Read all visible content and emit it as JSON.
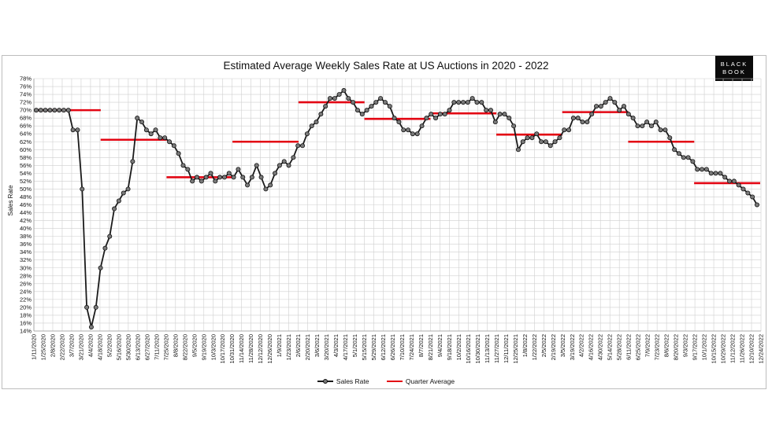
{
  "chart_data": {
    "type": "line",
    "title": "Estimated Average Weekly Sales Rate at US Auctions in 2020 - 2022",
    "ylabel": "Sales Rate",
    "xlabel": "",
    "ylim": [
      14,
      78
    ],
    "y_ticks": [
      "14%",
      "16%",
      "18%",
      "20%",
      "22%",
      "24%",
      "26%",
      "28%",
      "30%",
      "32%",
      "34%",
      "36%",
      "38%",
      "40%",
      "42%",
      "44%",
      "46%",
      "48%",
      "50%",
      "52%",
      "54%",
      "56%",
      "58%",
      "60%",
      "62%",
      "64%",
      "66%",
      "68%",
      "70%",
      "72%",
      "74%",
      "76%",
      "78%"
    ],
    "x_tick_labels": [
      "1/11/2020",
      "1/25/2020",
      "2/8/2020",
      "2/22/2020",
      "3/7/2020",
      "3/21/2020",
      "4/4/2020",
      "4/18/2020",
      "5/2/2020",
      "5/16/2020",
      "5/30/2020",
      "6/13/2020",
      "6/27/2020",
      "7/11/2020",
      "7/25/2020",
      "8/8/2020",
      "8/22/2020",
      "9/5/2020",
      "9/19/2020",
      "10/3/2020",
      "10/17/2020",
      "10/31/2020",
      "11/14/2020",
      "11/28/2020",
      "12/12/2020",
      "12/26/2020",
      "1/9/2021",
      "1/23/2021",
      "2/6/2021",
      "2/20/2021",
      "3/6/2021",
      "3/20/2021",
      "4/3/2021",
      "4/17/2021",
      "5/1/2021",
      "5/15/2021",
      "5/29/2021",
      "6/12/2021",
      "6/26/2021",
      "7/10/2021",
      "7/24/2021",
      "8/7/2021",
      "8/21/2021",
      "9/4/2021",
      "9/18/2021",
      "10/2/2021",
      "10/16/2021",
      "10/30/2021",
      "11/13/2021",
      "11/27/2021",
      "12/11/2021",
      "12/25/2021",
      "1/8/2022",
      "1/22/2022",
      "2/5/2022",
      "2/19/2022",
      "3/5/2022",
      "3/19/2022",
      "4/2/2022",
      "4/16/2022",
      "4/30/2022",
      "5/14/2022",
      "5/28/2022",
      "6/11/2022",
      "6/25/2022",
      "7/9/2022",
      "7/23/2022",
      "8/6/2022",
      "8/20/2022",
      "9/3/2022",
      "9/17/2022",
      "10/1/2022",
      "10/15/2022",
      "10/29/2022",
      "11/12/2022",
      "11/26/2022",
      "12/10/2022",
      "12/24/2022"
    ],
    "series": [
      {
        "name": "Sales Rate",
        "color": "#1a1a1a",
        "values": [
          70,
          70,
          70,
          70,
          70,
          70,
          70,
          70,
          65,
          65,
          50,
          20,
          15,
          20,
          30,
          35,
          38,
          45,
          47,
          49,
          50,
          57,
          68,
          67,
          65,
          64,
          65,
          63,
          63,
          62,
          61,
          59,
          56,
          55,
          52,
          53,
          52,
          53,
          54,
          52,
          53,
          53,
          54,
          53,
          55,
          53,
          51,
          53,
          56,
          53,
          50,
          51,
          54,
          56,
          57,
          56,
          58,
          61,
          61,
          64,
          66,
          67,
          69,
          71,
          73,
          73,
          74,
          75,
          73,
          72,
          70,
          69,
          70,
          71,
          72,
          73,
          72,
          71,
          68,
          67,
          65,
          65,
          64,
          64,
          66,
          68,
          69,
          68,
          69,
          69,
          70,
          72,
          72,
          72,
          72,
          73,
          72,
          72,
          70,
          70,
          67,
          69,
          69,
          68,
          66,
          60,
          62,
          63,
          63,
          64,
          62,
          62,
          61,
          62,
          63,
          65,
          65,
          68,
          68,
          67,
          67,
          69,
          71,
          71,
          72,
          73,
          72,
          70,
          71,
          69,
          68,
          66,
          66,
          67,
          66,
          67,
          65,
          65,
          63,
          60,
          59,
          58,
          58,
          57,
          55,
          55,
          55,
          54,
          54,
          54,
          53,
          52,
          52,
          51,
          50,
          49,
          48,
          46
        ]
      },
      {
        "name": "Quarter Average",
        "color": "#e30613",
        "segments": [
          {
            "value": 70.0
          },
          {
            "value": 62.5
          },
          {
            "value": 53.0
          },
          {
            "value": 62.0
          },
          {
            "value": 72.0
          },
          {
            "value": 67.8
          },
          {
            "value": 69.2
          },
          {
            "value": 63.8
          },
          {
            "value": 69.5
          },
          {
            "value": 62.0
          },
          {
            "value": 51.5
          }
        ]
      }
    ],
    "legend": [
      "Sales Rate",
      "Quarter Average"
    ],
    "legend_position": "bottom",
    "grid": true
  },
  "branding": {
    "logo_line1": "BLACK",
    "logo_line2": "BOOK"
  }
}
